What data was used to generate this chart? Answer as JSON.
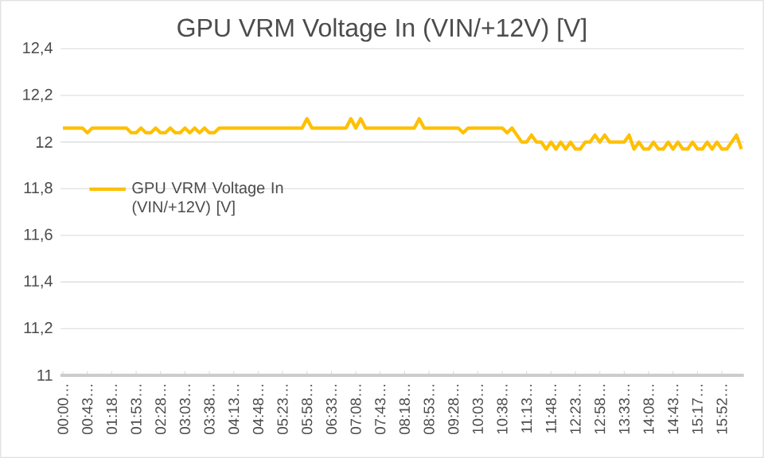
{
  "chart_data": {
    "type": "line",
    "title": "GPU VRM Voltage In (VIN/+12V) [V]",
    "categories": [
      "00:00…",
      null,
      null,
      null,
      null,
      "00:43…",
      null,
      null,
      null,
      null,
      "01:18…",
      null,
      null,
      null,
      null,
      "01:53…",
      null,
      null,
      null,
      null,
      "02:28…",
      null,
      null,
      null,
      null,
      "03:03…",
      null,
      null,
      null,
      null,
      "03:38…",
      null,
      null,
      null,
      null,
      "04:13…",
      null,
      null,
      null,
      null,
      "04:48…",
      null,
      null,
      null,
      null,
      "05:23…",
      null,
      null,
      null,
      null,
      "05:58…",
      null,
      null,
      null,
      null,
      "06:33…",
      null,
      null,
      null,
      null,
      "07:08…",
      null,
      null,
      null,
      null,
      "07:43…",
      null,
      null,
      null,
      null,
      "08:18…",
      null,
      null,
      null,
      null,
      "08:53…",
      null,
      null,
      null,
      null,
      "09:28…",
      null,
      null,
      null,
      null,
      "10:03…",
      null,
      null,
      null,
      null,
      "10:38…",
      null,
      null,
      null,
      null,
      "11:13…",
      null,
      null,
      null,
      null,
      "11:48…",
      null,
      null,
      null,
      null,
      "12:23…",
      null,
      null,
      null,
      null,
      "12:58…",
      null,
      null,
      null,
      null,
      "13:33…",
      null,
      null,
      null,
      null,
      "14:08…",
      null,
      null,
      null,
      null,
      "14:43…",
      null,
      null,
      null,
      null,
      "15:17…",
      null,
      null,
      null,
      null,
      "15:52…",
      null,
      null,
      null,
      null
    ],
    "series": [
      {
        "name": "GPU VRM Voltage In (VIN/+12V) [V]",
        "color": "#ffc000",
        "values": [
          12.06,
          12.06,
          12.06,
          12.06,
          12.06,
          12.04,
          12.06,
          12.06,
          12.06,
          12.06,
          12.06,
          12.06,
          12.06,
          12.06,
          12.04,
          12.04,
          12.06,
          12.04,
          12.04,
          12.06,
          12.04,
          12.04,
          12.06,
          12.04,
          12.04,
          12.06,
          12.04,
          12.06,
          12.04,
          12.06,
          12.04,
          12.04,
          12.06,
          12.06,
          12.06,
          12.06,
          12.06,
          12.06,
          12.06,
          12.06,
          12.06,
          12.06,
          12.06,
          12.06,
          12.06,
          12.06,
          12.06,
          12.06,
          12.06,
          12.06,
          12.1,
          12.06,
          12.06,
          12.06,
          12.06,
          12.06,
          12.06,
          12.06,
          12.06,
          12.1,
          12.06,
          12.1,
          12.06,
          12.06,
          12.06,
          12.06,
          12.06,
          12.06,
          12.06,
          12.06,
          12.06,
          12.06,
          12.06,
          12.1,
          12.06,
          12.06,
          12.06,
          12.06,
          12.06,
          12.06,
          12.06,
          12.06,
          12.04,
          12.06,
          12.06,
          12.06,
          12.06,
          12.06,
          12.06,
          12.06,
          12.06,
          12.04,
          12.06,
          12.03,
          12.0,
          12.0,
          12.03,
          12.0,
          12.0,
          11.97,
          12.0,
          11.97,
          12.0,
          11.97,
          12.0,
          11.97,
          11.97,
          12.0,
          12.0,
          12.03,
          12.0,
          12.03,
          12.0,
          12.0,
          12.0,
          12.0,
          12.03,
          11.97,
          12.0,
          11.97,
          11.97,
          12.0,
          11.97,
          11.97,
          12.0,
          11.97,
          12.0,
          11.97,
          11.97,
          12.0,
          11.97,
          11.97,
          12.0,
          11.97,
          12.0,
          11.97,
          11.97,
          12.0,
          12.03,
          11.97
        ]
      }
    ],
    "ylim": [
      11,
      12.4
    ],
    "yticks": [
      {
        "value": 11,
        "label": "11"
      },
      {
        "value": 11.2,
        "label": "11,2"
      },
      {
        "value": 11.4,
        "label": "11,4"
      },
      {
        "value": 11.6,
        "label": "11,6"
      },
      {
        "value": 11.8,
        "label": "11,8"
      },
      {
        "value": 12,
        "label": "12"
      },
      {
        "value": 12.2,
        "label": "12,2"
      },
      {
        "value": 12.4,
        "label": "12,4"
      }
    ],
    "grid": "y",
    "legend": "left"
  }
}
